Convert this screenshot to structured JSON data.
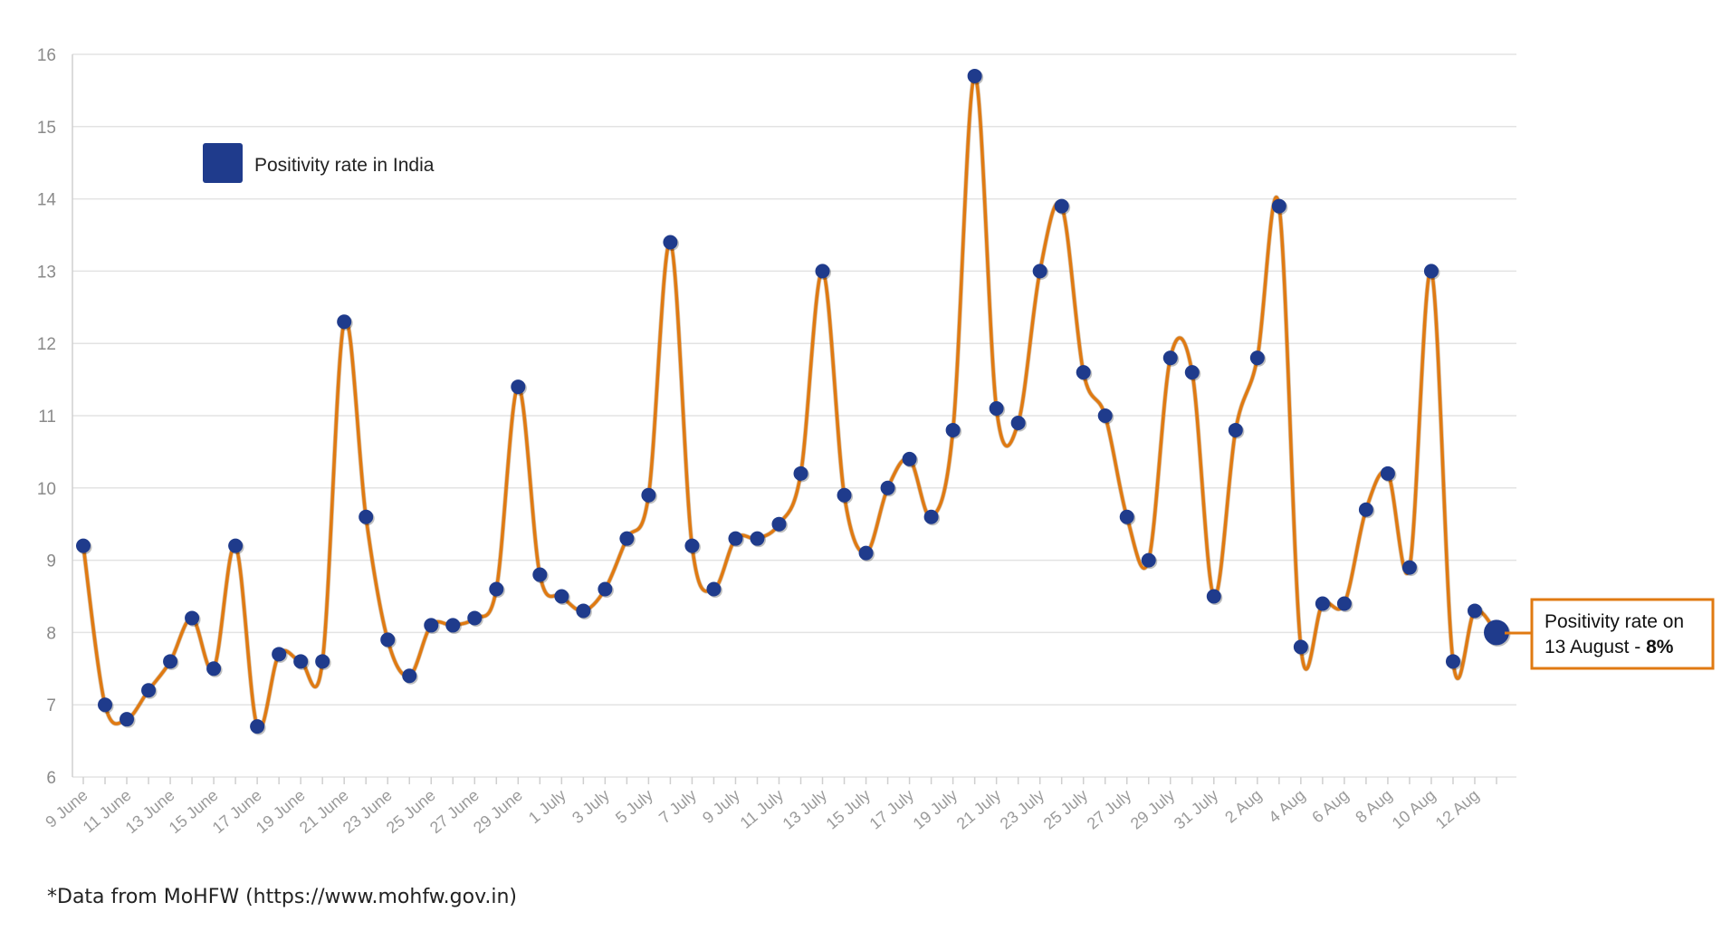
{
  "chart_data": {
    "type": "line",
    "title": "",
    "xlabel": "",
    "ylabel": "",
    "ylim": [
      6,
      16
    ],
    "yticks": [
      6,
      7,
      8,
      9,
      10,
      11,
      12,
      13,
      14,
      15,
      16
    ],
    "grid": "horizontal",
    "legend": {
      "label": "Positivity rate in India",
      "placement": "top-left"
    },
    "series_color": "#e07a12",
    "marker_color": "#1f3b8c",
    "x_tick_labels": [
      "9 June",
      "11 June",
      "13 June",
      "15 June",
      "17 June",
      "19 June",
      "21 June",
      "23 June",
      "25 June",
      "27 June",
      "29 June",
      "1 July",
      "3 July",
      "5 July",
      "7 July",
      "9 July",
      "11 July",
      "13 July",
      "15 July",
      "17 July",
      "19 July",
      "21 July",
      "23 July",
      "25 July",
      "27 July",
      "29 July",
      "31 July",
      "2 Aug",
      "4 Aug",
      "6 Aug",
      "8 Aug",
      "10 Aug",
      "12 Aug"
    ],
    "series": [
      {
        "name": "Positivity rate in India",
        "values": [
          9.2,
          7.0,
          6.8,
          7.2,
          7.6,
          8.2,
          7.5,
          9.2,
          6.7,
          7.7,
          7.6,
          7.6,
          12.3,
          9.6,
          7.9,
          7.4,
          8.1,
          8.1,
          8.2,
          8.6,
          11.4,
          8.8,
          8.5,
          8.3,
          8.6,
          9.3,
          9.9,
          13.4,
          9.2,
          8.6,
          9.3,
          9.3,
          9.5,
          10.2,
          13.0,
          9.9,
          9.1,
          10.0,
          10.4,
          9.6,
          10.8,
          15.7,
          11.1,
          10.9,
          13.0,
          13.9,
          11.6,
          11.0,
          9.6,
          9.0,
          11.8,
          11.6,
          8.5,
          10.8,
          11.8,
          13.9,
          7.8,
          8.4,
          8.4,
          9.7,
          10.2,
          8.9,
          13.0,
          7.6,
          8.3,
          8.0
        ]
      }
    ],
    "annotation": {
      "text_line1": "Positivity rate on",
      "text_line2_prefix": "13 August - ",
      "text_line2_bold": "8%",
      "color": "#e07a12"
    }
  },
  "footnote": "*Data from MoHFW (https://www.mohfw.gov.in)"
}
